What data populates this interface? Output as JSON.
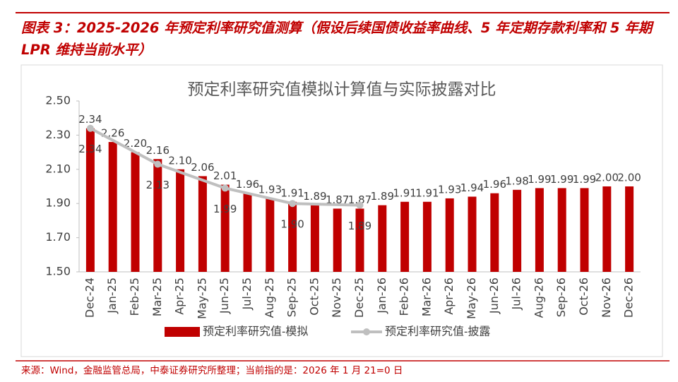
{
  "header": {
    "title": "图表 3：2025-2026 年预定利率研究值测算（假设后续国债收益率曲线、5 年定期存款利率和 5 年期 LPR 维持当前水平）"
  },
  "chart_data": {
    "type": "bar_line",
    "title": "预定利率研究值模拟计算值与实际披露对比",
    "categories": [
      "Dec-24",
      "Jan-25",
      "Feb-25",
      "Mar-25",
      "Apr-25",
      "May-25",
      "Jun-25",
      "Jul-25",
      "Aug-25",
      "Sep-25",
      "Oct-25",
      "Nov-25",
      "Dec-25",
      "Jan-26",
      "Feb-26",
      "Mar-26",
      "Apr-26",
      "May-26",
      "Jun-26",
      "Jul-26",
      "Aug-26",
      "Sep-26",
      "Oct-26",
      "Nov-26",
      "Dec-26"
    ],
    "series": [
      {
        "name": "预定利率研究值-模拟",
        "type": "bar",
        "color": "#c00000",
        "values": [
          2.34,
          2.26,
          2.2,
          2.16,
          2.1,
          2.06,
          2.01,
          1.96,
          1.93,
          1.91,
          1.89,
          1.87,
          1.87,
          1.89,
          1.91,
          1.91,
          1.93,
          1.94,
          1.96,
          1.98,
          1.99,
          1.99,
          1.99,
          2.0,
          2.0
        ],
        "value_labels": [
          "2.34",
          "2.26",
          "2.20",
          "2.16",
          "2.10",
          "2.06",
          "2.01",
          "1.96",
          "1.93",
          "1.91",
          "1.89",
          "1.87",
          "1.87",
          "1.89",
          "1.91",
          "1.91",
          "1.93",
          "1.94",
          "1.96",
          "1.98",
          "1.99",
          "1.99",
          "1.99",
          "2.00",
          "2.00"
        ]
      },
      {
        "name": "预定利率研究值-披露",
        "type": "line",
        "color": "#bfbfbf",
        "connect_gaps": true,
        "values": [
          2.34,
          null,
          null,
          2.13,
          null,
          null,
          1.99,
          null,
          null,
          1.9,
          null,
          null,
          1.89,
          null,
          null,
          null,
          null,
          null,
          null,
          null,
          null,
          null,
          null,
          null,
          null
        ],
        "value_labels": [
          "2.34",
          null,
          null,
          "2.13",
          null,
          null,
          "1.99",
          null,
          null,
          "1.90",
          null,
          null,
          "1.89",
          null,
          null,
          null,
          null,
          null,
          null,
          null,
          null,
          null,
          null,
          null,
          null
        ]
      }
    ],
    "ylim": [
      1.5,
      2.5
    ],
    "yticks": [
      {
        "value": 1.5,
        "label": "1.50"
      },
      {
        "value": 1.7,
        "label": "1.70"
      },
      {
        "value": 1.9,
        "label": "1.90"
      },
      {
        "value": 2.1,
        "label": "2.10"
      },
      {
        "value": 2.3,
        "label": "2.30"
      },
      {
        "value": 2.5,
        "label": "2.50"
      }
    ],
    "grid": false,
    "legend": "bottom"
  },
  "footer": {
    "source": "来源：Wind，金融监管总局，中泰证券研究所整理；当前指的是：2026 年 1 月 21=0 日"
  }
}
